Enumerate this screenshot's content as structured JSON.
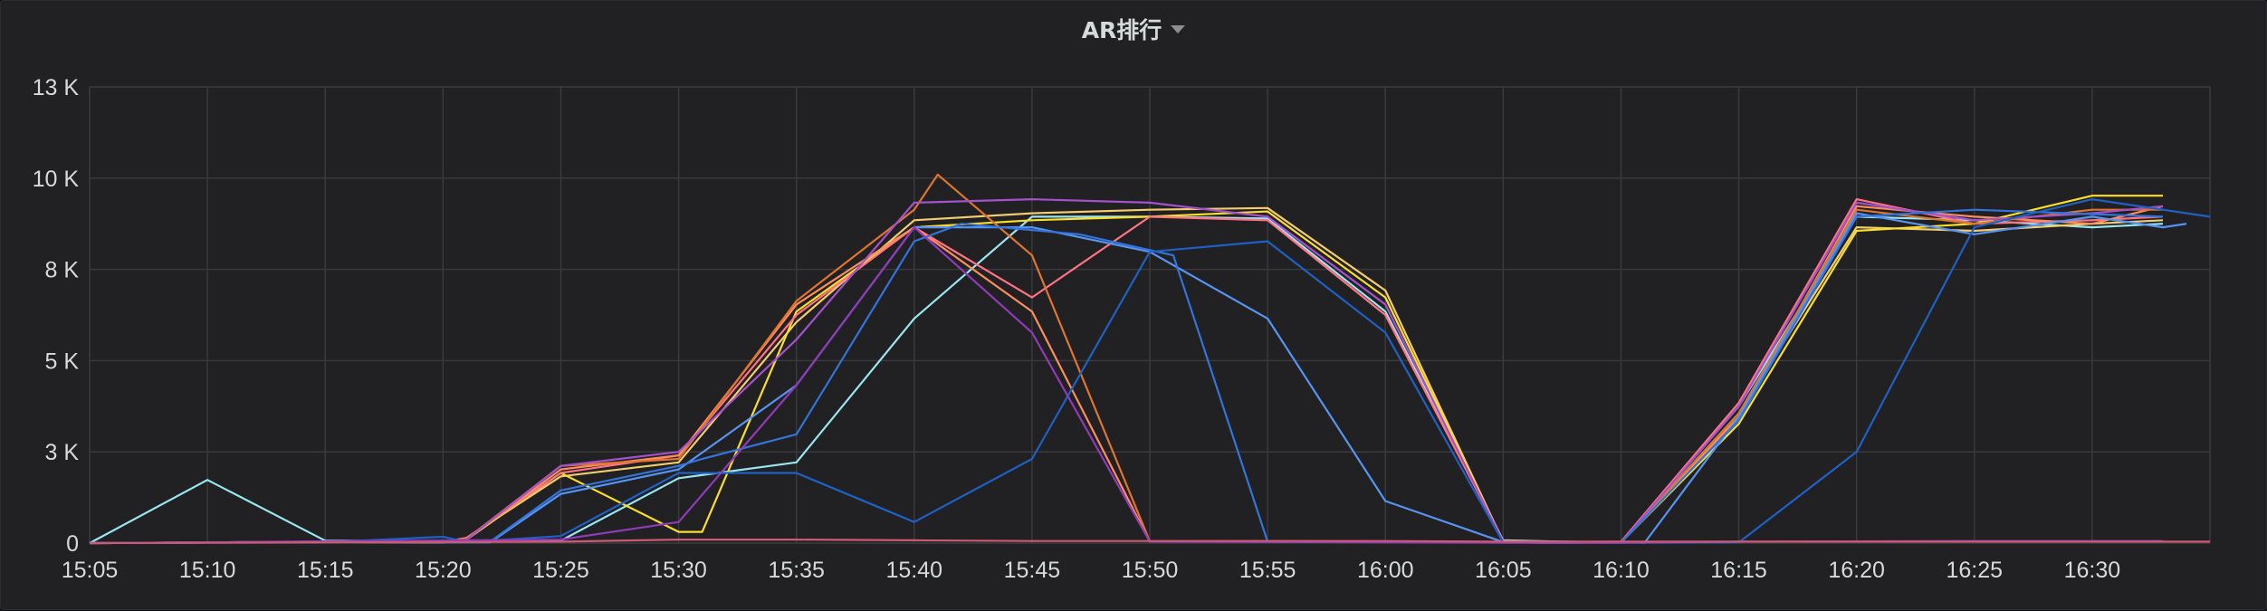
{
  "panel": {
    "title": "AR排行"
  },
  "chart_data": {
    "type": "line",
    "title": "AR排行",
    "xlabel": "",
    "ylabel": "",
    "x_ticks": [
      "15:05",
      "15:10",
      "15:15",
      "15:20",
      "15:25",
      "15:30",
      "15:35",
      "15:40",
      "15:45",
      "15:50",
      "15:55",
      "16:00",
      "16:05",
      "16:10",
      "16:15",
      "16:20",
      "16:25",
      "16:30"
    ],
    "y_ticks": [
      {
        "value": 0,
        "label": "0"
      },
      {
        "value": 2600,
        "label": "3 K"
      },
      {
        "value": 5200,
        "label": "5 K"
      },
      {
        "value": 7800,
        "label": "8 K"
      },
      {
        "value": 10400,
        "label": "10 K"
      },
      {
        "value": 13000,
        "label": "13 K"
      }
    ],
    "xlim": [
      0,
      90
    ],
    "ylim": [
      0,
      13000
    ],
    "grid": true,
    "legend": "none",
    "series": [
      {
        "color": "#9ae6f0",
        "x": [
          0,
          5,
          10,
          15,
          20,
          25,
          30,
          35,
          40,
          45,
          50,
          55,
          60,
          62,
          65,
          70,
          75,
          80,
          85,
          88
        ],
        "y": [
          0,
          1800,
          70,
          60,
          70,
          1850,
          2300,
          6400,
          9300,
          9300,
          9250,
          6600,
          80,
          50,
          20,
          3900,
          9300,
          9200,
          9000,
          9100
        ]
      },
      {
        "color": "#f2cc6e",
        "x": [
          0,
          10,
          15,
          16,
          20,
          25,
          30,
          35,
          40,
          45,
          50,
          55,
          60,
          62,
          65,
          70,
          75,
          80,
          85,
          88
        ],
        "y": [
          0,
          30,
          20,
          150,
          1900,
          2300,
          6300,
          9200,
          9400,
          9500,
          9550,
          7200,
          40,
          20,
          30,
          3700,
          9000,
          8900,
          9100,
          9200
        ]
      },
      {
        "color": "#fade2a",
        "x": [
          0,
          10,
          15,
          16,
          20,
          25,
          26,
          30,
          35,
          40,
          45,
          50,
          55,
          60,
          62,
          65,
          70,
          75,
          80,
          85,
          88
        ],
        "y": [
          0,
          40,
          20,
          100,
          2000,
          320,
          320,
          6600,
          9000,
          9200,
          9300,
          9450,
          7000,
          20,
          10,
          20,
          3400,
          8900,
          9100,
          9900,
          9900
        ]
      },
      {
        "color": "#ff7383",
        "x": [
          0,
          10,
          15,
          16,
          20,
          25,
          30,
          35,
          40,
          45,
          50,
          55,
          60,
          62,
          65,
          70,
          75,
          80,
          85,
          88
        ],
        "y": [
          0,
          40,
          30,
          150,
          2000,
          2500,
          6500,
          9000,
          7000,
          9300,
          9200,
          6500,
          60,
          30,
          40,
          4000,
          9800,
          9100,
          9200,
          9300
        ]
      },
      {
        "color": "#fc8e5e",
        "x": [
          0,
          10,
          15,
          16,
          20,
          25,
          30,
          35,
          40,
          45,
          50,
          55,
          60,
          62,
          65,
          70,
          75,
          80,
          85,
          88
        ],
        "y": [
          0,
          30,
          20,
          110,
          2100,
          2500,
          6800,
          9000,
          6600,
          40,
          40,
          30,
          20,
          10,
          20,
          3600,
          9600,
          9300,
          9100,
          9600
        ]
      },
      {
        "color": "#e0752d",
        "x": [
          0,
          10,
          15,
          16,
          20,
          25,
          30,
          35,
          36,
          40,
          45,
          50,
          55,
          60,
          62,
          65,
          70,
          75,
          80,
          85,
          88
        ],
        "y": [
          0,
          40,
          30,
          120,
          2200,
          2400,
          6900,
          9500,
          10500,
          8200,
          50,
          60,
          50,
          30,
          10,
          30,
          3700,
          9500,
          9100,
          9500,
          9500
        ]
      },
      {
        "color": "#a352cc",
        "x": [
          0,
          10,
          15,
          16,
          20,
          25,
          30,
          35,
          40,
          45,
          50,
          55,
          60,
          62,
          65,
          70,
          75,
          80,
          85,
          88
        ],
        "y": [
          0,
          30,
          20,
          100,
          2200,
          2600,
          5800,
          9700,
          9800,
          9700,
          9300,
          6800,
          30,
          10,
          20,
          3900,
          9700,
          9200,
          9400,
          9600
        ]
      },
      {
        "color": "#5794f2",
        "x": [
          0,
          10,
          15,
          17,
          20,
          25,
          30,
          35,
          40,
          45,
          50,
          55,
          60,
          61,
          65,
          66,
          70,
          75,
          80,
          85,
          88,
          89
        ],
        "y": [
          0,
          30,
          20,
          20,
          1400,
          2100,
          4500,
          9000,
          9000,
          8300,
          6400,
          1200,
          30,
          20,
          20,
          10,
          3600,
          9400,
          8800,
          9300,
          9000,
          9100
        ]
      },
      {
        "color": "#3274d9",
        "x": [
          0,
          10,
          15,
          17,
          20,
          25,
          26,
          30,
          35,
          37,
          42,
          46,
          50,
          60,
          62,
          65,
          70,
          75,
          80,
          88
        ],
        "y": [
          0,
          40,
          30,
          40,
          1500,
          2200,
          2400,
          3100,
          8600,
          9100,
          8800,
          8200,
          40,
          20,
          10,
          10,
          3500,
          9300,
          9500,
          9300
        ]
      },
      {
        "color": "#1f60c4",
        "x": [
          0,
          10,
          15,
          16,
          20,
          25,
          30,
          35,
          40,
          45,
          50,
          55,
          60,
          65,
          70,
          75,
          80,
          85,
          90
        ],
        "y": [
          0,
          20,
          180,
          30,
          200,
          2000,
          2000,
          600,
          2400,
          8300,
          8600,
          6000,
          20,
          10,
          20,
          2600,
          9000,
          9800,
          9300
        ]
      },
      {
        "color": "#8f3bb8",
        "x": [
          0,
          20,
          25,
          30,
          35,
          40,
          45,
          50,
          55,
          60,
          65,
          70,
          75,
          80,
          85,
          88
        ],
        "y": [
          0,
          100,
          600,
          4500,
          9000,
          6000,
          40,
          30,
          20,
          10,
          10,
          40,
          50,
          60,
          60,
          60
        ]
      },
      {
        "color": "#cd5a75",
        "x": [
          0,
          20,
          25,
          30,
          35,
          40,
          45,
          50,
          55,
          60,
          65,
          70,
          75,
          80,
          85,
          90
        ],
        "y": [
          0,
          40,
          100,
          100,
          80,
          60,
          60,
          60,
          60,
          40,
          40,
          40,
          40,
          40,
          40,
          40
        ]
      }
    ]
  }
}
